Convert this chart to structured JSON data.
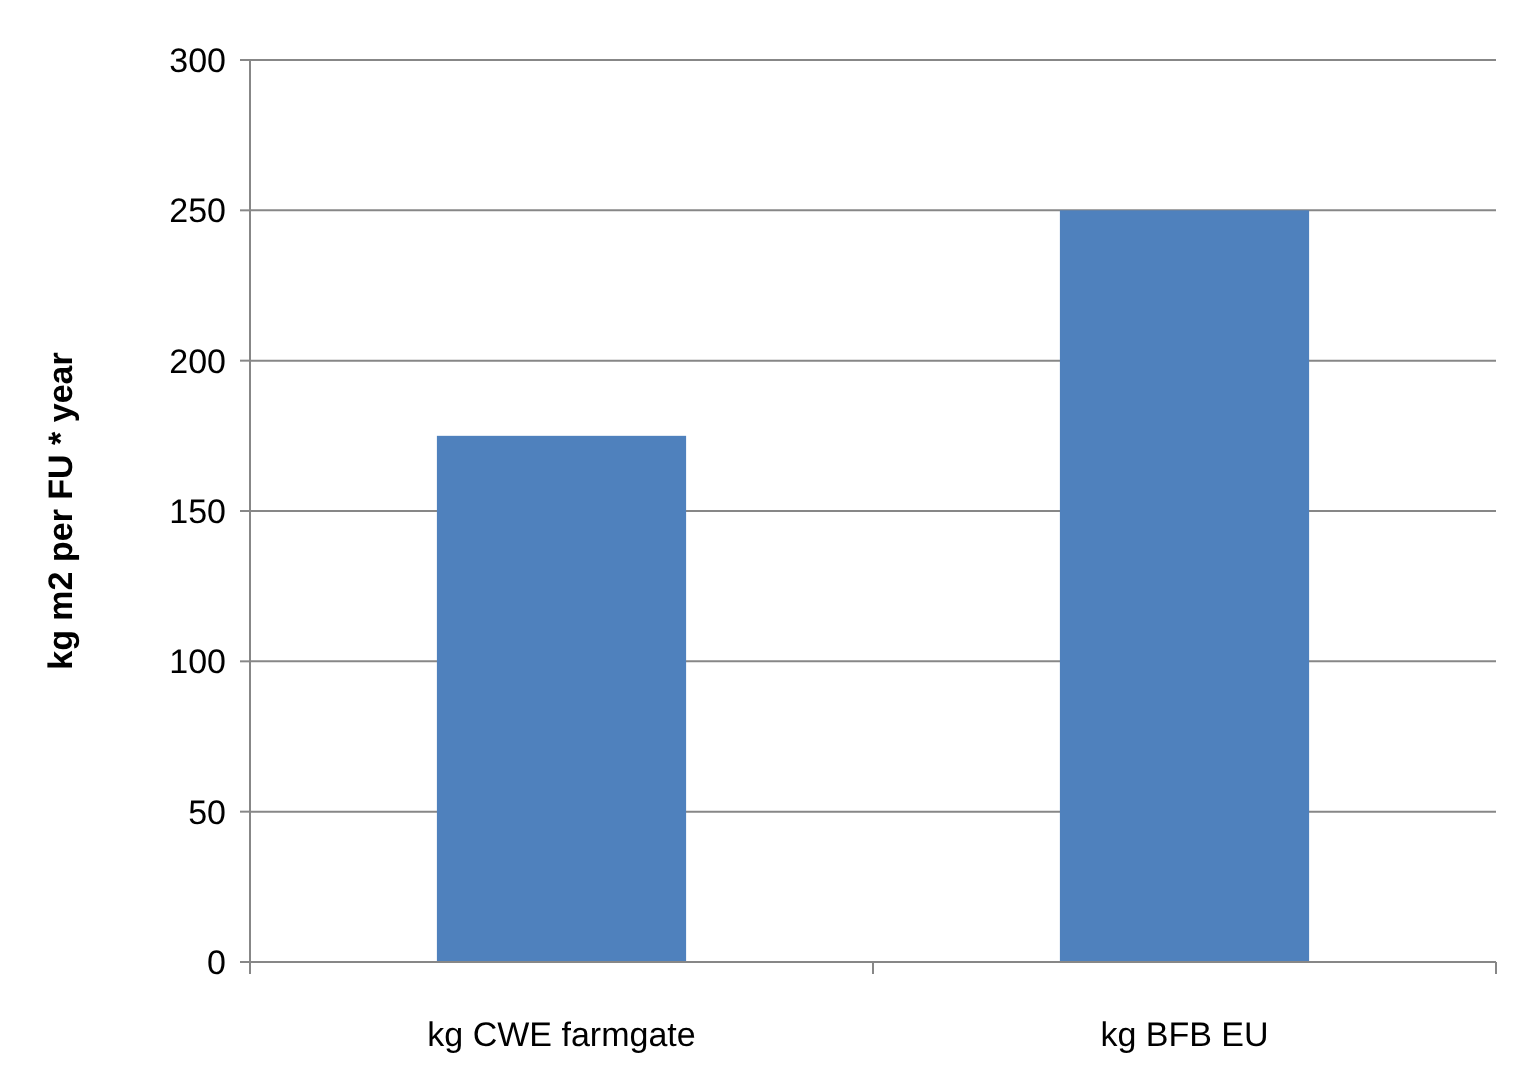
{
  "chart_data": {
    "type": "bar",
    "ylabel": "kg m2 per FU * year",
    "categories": [
      "kg CWE farmgate",
      "kg BFB EU"
    ],
    "values": [
      175,
      250
    ],
    "color": "#4f81bd",
    "ylim": [
      0,
      300
    ],
    "yticks": [
      0,
      50,
      100,
      150,
      200,
      250,
      300
    ],
    "grid": "y"
  }
}
